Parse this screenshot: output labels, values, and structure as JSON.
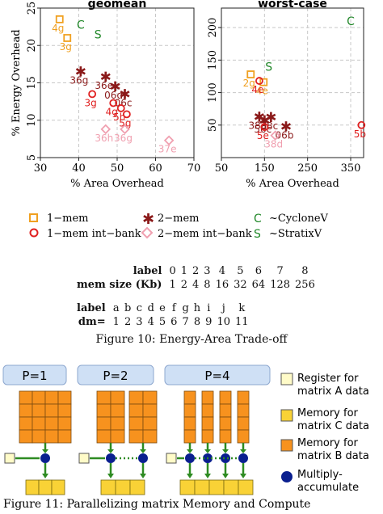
{
  "chart_data": [
    {
      "type": "scatter",
      "title": "geomean",
      "xlabel": "% Area Overhead",
      "ylabel": "% Energy Overhead",
      "xlim": [
        30,
        70
      ],
      "ylim": [
        5,
        25
      ],
      "xticks": [
        30,
        40,
        50,
        60,
        70
      ],
      "yticks": [
        5,
        10,
        15,
        20,
        25
      ],
      "grid": true,
      "points": [
        {
          "series": "1-mem",
          "label": "4g",
          "x": 35,
          "y": 23.5
        },
        {
          "series": "1-mem",
          "label": "3g",
          "x": 37,
          "y": 21
        },
        {
          "series": "CycloneV",
          "label": "",
          "x": 40.5,
          "y": 22.8
        },
        {
          "series": "StratixV",
          "label": "",
          "x": 45,
          "y": 21.5
        },
        {
          "series": "2-mem",
          "label": "36g",
          "x": 40.5,
          "y": 16.5
        },
        {
          "series": "2-mem",
          "label": "36e",
          "x": 47,
          "y": 15.8
        },
        {
          "series": "2-mem",
          "label": "06d",
          "x": 49.5,
          "y": 14.5
        },
        {
          "series": "2-mem",
          "label": "06c",
          "x": 52,
          "y": 13.5
        },
        {
          "series": "1-mem int-bank",
          "label": "3g",
          "x": 43.5,
          "y": 13.5
        },
        {
          "series": "1-mem int-bank",
          "label": "4g",
          "x": 49,
          "y": 12.3
        },
        {
          "series": "1-mem int-bank",
          "label": "5h",
          "x": 51,
          "y": 11.6
        },
        {
          "series": "1-mem int-bank",
          "label": "5g",
          "x": 52.5,
          "y": 10.8
        },
        {
          "series": "2-mem int-bank",
          "label": "36h",
          "x": 47,
          "y": 8.8
        },
        {
          "series": "2-mem int-bank",
          "label": "36g",
          "x": 52,
          "y": 8.8
        },
        {
          "series": "2-mem int-bank",
          "label": "37e",
          "x": 63.5,
          "y": 7.3
        }
      ]
    },
    {
      "type": "scatter",
      "title": "worst-case",
      "xlabel": "% Area Overhead",
      "ylabel": "",
      "xlim": [
        50,
        380
      ],
      "ylim": [
        0,
        230
      ],
      "xticks": [
        50,
        150,
        250,
        350
      ],
      "yticks": [
        50,
        100,
        150,
        200
      ],
      "grid": true,
      "points": [
        {
          "series": "CycloneV",
          "label": "",
          "x": 350,
          "y": 210
        },
        {
          "series": "StratixV",
          "label": "",
          "x": 160,
          "y": 140
        },
        {
          "series": "1-mem",
          "label": "2g",
          "x": 118,
          "y": 128
        },
        {
          "series": "1-mem",
          "label": "4e",
          "x": 148,
          "y": 116
        },
        {
          "series": "1-mem int-bank",
          "label": "4e",
          "x": 138,
          "y": 118
        },
        {
          "series": "2-mem",
          "label": "38d",
          "x": 138,
          "y": 63
        },
        {
          "series": "2-mem",
          "label": "38c",
          "x": 165,
          "y": 62
        },
        {
          "series": "2-mem",
          "label": "56c",
          "x": 150,
          "y": 57
        },
        {
          "series": "2-mem",
          "label": "06b",
          "x": 200,
          "y": 48
        },
        {
          "series": "1-mem int-bank",
          "label": "5e",
          "x": 150,
          "y": 47
        },
        {
          "series": "1-mem int-bank",
          "label": "5b",
          "x": 375,
          "y": 50
        },
        {
          "series": "2-mem int-bank",
          "label": "38d",
          "x": 175,
          "y": 34
        }
      ]
    }
  ],
  "legend": {
    "items": [
      {
        "symbol": "square",
        "label": "1−mem",
        "color": "#f0a020"
      },
      {
        "symbol": "star",
        "label": "2−mem",
        "color": "#8b1a1a"
      },
      {
        "symbol": "C",
        "label": "~CycloneV",
        "color": "#22882a"
      },
      {
        "symbol": "circle",
        "label": "1−mem int−bank",
        "color": "#e02020"
      },
      {
        "symbol": "diamond",
        "label": "2−mem int−bank",
        "color": "#f0a0b0"
      },
      {
        "symbol": "S",
        "label": "~StratixV",
        "color": "#22882a"
      }
    ]
  },
  "colors": {
    "one_mem": "#f0a020",
    "two_mem": "#8b1a1a",
    "one_mem_int_bank": "#e02020",
    "two_mem_int_bank": "#f0a0b0",
    "fpga": "#22882a",
    "register": "#fffbc8",
    "mem_c": "#f9d236",
    "mem_b": "#f7921e",
    "mac": "#0a1f8f",
    "arrow": "#2e8b22"
  },
  "mem_table": {
    "head1": "label",
    "head2": "mem size (Kb)",
    "labels": [
      "0",
      "1",
      "2",
      "3",
      "4",
      "5",
      "6",
      "7",
      "8"
    ],
    "sizes": [
      "1",
      "2",
      "4",
      "8",
      "16",
      "32",
      "64",
      "128",
      "256"
    ]
  },
  "dm_table": {
    "head1": "label",
    "head2": "dm=",
    "labels": [
      "a",
      "b",
      "c",
      "d",
      "e",
      "f",
      "g",
      "h",
      "i",
      "j",
      "k"
    ],
    "values": [
      "1",
      "2",
      "3",
      "4",
      "5",
      "6",
      "7",
      "8",
      "9",
      "10",
      "11"
    ]
  },
  "caption": "Figure 10: Energy-Area Trade-off",
  "diagram": {
    "panels": [
      "P=1",
      "P=2",
      "P=4"
    ],
    "legend": [
      {
        "label": "Register for matrix A data",
        "swatch": "register"
      },
      {
        "label": "Memory for matrix C data",
        "swatch": "mem_c"
      },
      {
        "label": "Memory for matrix B data",
        "swatch": "mem_b"
      },
      {
        "label": "Multiply-accumulate",
        "swatch": "mac"
      }
    ]
  },
  "bottom_caption": "Figure 11: Parallelizing matrix Memory and Compute"
}
